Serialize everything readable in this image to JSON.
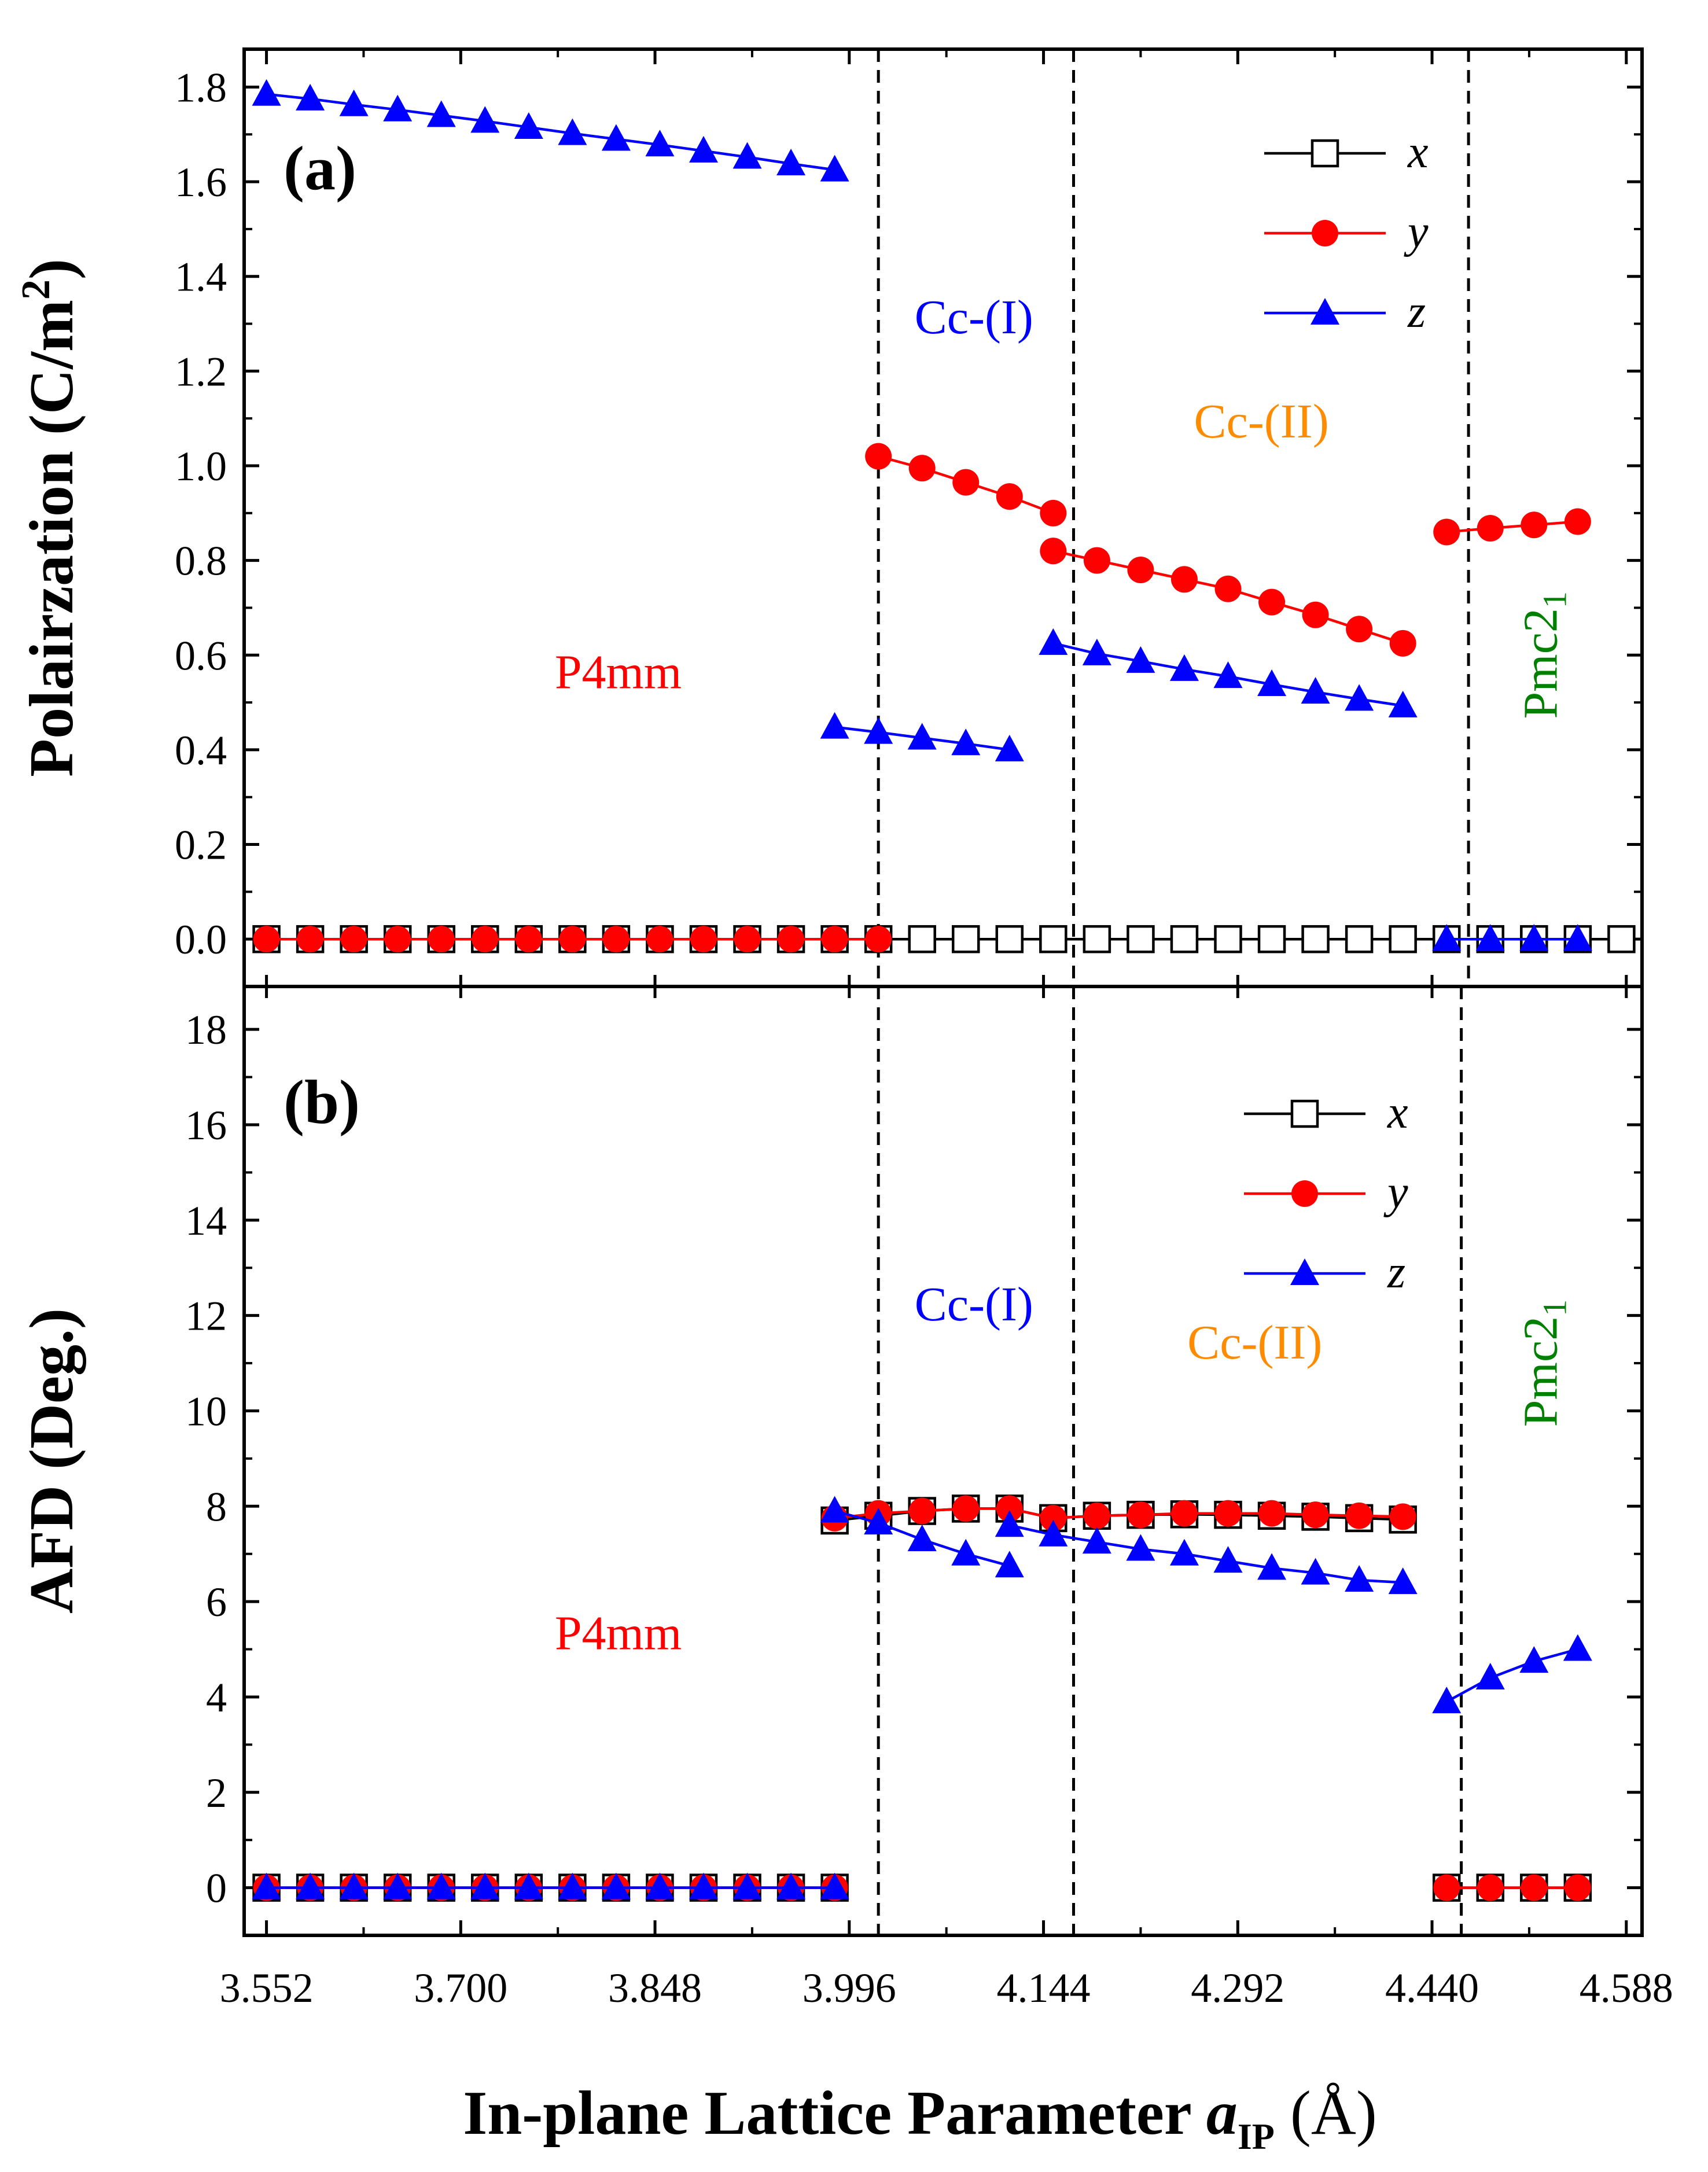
{
  "chart_data": {
    "type": "line",
    "x": [
      3.552,
      3.5853,
      3.6186,
      3.6519,
      3.6852,
      3.7185,
      3.7518,
      3.7851,
      3.8184,
      3.8517,
      3.885,
      3.9183,
      3.9516,
      3.9849,
      4.0182,
      4.0515,
      4.0848,
      4.1181,
      4.1514,
      4.1847,
      4.218,
      4.2513,
      4.2846,
      4.3179,
      4.3512,
      4.3845,
      4.4178,
      4.4511,
      4.4844,
      4.5177,
      4.551,
      4.5843
    ],
    "xticks": [
      "3.552",
      "3.700",
      "3.848",
      "3.996",
      "4.144",
      "4.292",
      "4.440",
      "4.588"
    ],
    "xlabel": "In-plane Lattice  Parameter ",
    "xlabel_var": "a",
    "xlabel_sub": "IP",
    "xlabel_unit": " (Å)",
    "xlim": [
      3.535,
      4.6
    ],
    "series_colors": {
      "x": "#000000",
      "y": "#ff0000",
      "z": "#0000ff"
    },
    "panels": [
      {
        "label": "(a)",
        "ylabel": "Polairzation (C/m",
        "ylabel_sup": "2",
        "ylabel_end": ")",
        "ylim": [
          -0.1,
          1.88
        ],
        "yticks": [
          "0.0",
          "0.2",
          "0.4",
          "0.6",
          "0.8",
          "1.0",
          "1.2",
          "1.4",
          "1.6",
          "1.8"
        ],
        "phase_boundaries": [
          4.0182,
          4.1669,
          4.4678
        ],
        "phases": [
          {
            "text": "P4mm",
            "color": "#ff0000",
            "x": 3.82,
            "y": 0.53,
            "rotate": false
          },
          {
            "text": "Cc-(I)",
            "color": "#0000ff",
            "x": 4.091,
            "y": 1.28,
            "rotate": false
          },
          {
            "text": "Cc-(II)",
            "color": "#ff8c00",
            "x": 4.31,
            "y": 1.06,
            "rotate": false
          },
          {
            "text": "Pmc2",
            "sub": "1",
            "color": "#008000",
            "x": 4.535,
            "y": 0.6,
            "rotate": true
          }
        ],
        "legend": [
          "x",
          "y",
          "z"
        ],
        "series": [
          {
            "name": "x",
            "segments": [
              {
                "x": [
                  4.0182,
                  4.0515,
                  4.0848,
                  4.1181,
                  4.1514,
                  4.1847,
                  4.218,
                  4.2513,
                  4.2846,
                  4.3179,
                  4.3512,
                  4.3845,
                  4.4178,
                  4.4511,
                  4.4844,
                  4.5177,
                  4.551,
                  4.5843
                ],
                "y": [
                  0,
                  0,
                  0,
                  0,
                  0,
                  0,
                  0,
                  0,
                  0,
                  0,
                  0,
                  0,
                  0,
                  0,
                  0,
                  0,
                  0,
                  0
                ]
              },
              {
                "x": [
                  3.552,
                  3.5853,
                  3.6186,
                  3.6519,
                  3.6852,
                  3.7185,
                  3.7518,
                  3.7851,
                  3.8184,
                  3.8517,
                  3.885,
                  3.9183,
                  3.9516,
                  3.9849
                ],
                "y": [
                  0,
                  0,
                  0,
                  0,
                  0,
                  0,
                  0,
                  0,
                  0,
                  0,
                  0,
                  0,
                  0,
                  0
                ]
              }
            ]
          },
          {
            "name": "y",
            "segments": [
              {
                "x": [
                  3.552,
                  3.5853,
                  3.6186,
                  3.6519,
                  3.6852,
                  3.7185,
                  3.7518,
                  3.7851,
                  3.8184,
                  3.8517,
                  3.885,
                  3.9183,
                  3.9516,
                  3.9849,
                  4.0182
                ],
                "y": [
                  0,
                  0,
                  0,
                  0,
                  0,
                  0,
                  0,
                  0,
                  0,
                  0,
                  0,
                  0,
                  0,
                  0,
                  0
                ]
              },
              {
                "x": [
                  4.0182,
                  4.0515,
                  4.0848,
                  4.1181,
                  4.1514
                ],
                "y": [
                  1.02,
                  0.995,
                  0.965,
                  0.935,
                  0.9
                ]
              },
              {
                "x": [
                  4.1514,
                  4.1847,
                  4.218,
                  4.2513,
                  4.2846,
                  4.3179,
                  4.3512,
                  4.3845,
                  4.4178
                ],
                "y": [
                  0.82,
                  0.8,
                  0.78,
                  0.76,
                  0.74,
                  0.712,
                  0.685,
                  0.655,
                  0.625
                ]
              },
              {
                "x": [
                  4.4511,
                  4.4844,
                  4.5177,
                  4.551
                ],
                "y": [
                  0.86,
                  0.868,
                  0.875,
                  0.882
                ]
              }
            ]
          },
          {
            "name": "z",
            "segments": [
              {
                "x": [
                  3.552,
                  3.5853,
                  3.6186,
                  3.6519,
                  3.6852,
                  3.7185,
                  3.7518,
                  3.7851,
                  3.8184,
                  3.8517,
                  3.885,
                  3.9183,
                  3.9516,
                  3.9849
                ],
                "y": [
                  1.785,
                  1.775,
                  1.763,
                  1.752,
                  1.74,
                  1.728,
                  1.715,
                  1.702,
                  1.69,
                  1.678,
                  1.665,
                  1.652,
                  1.638,
                  1.625
                ]
              },
              {
                "x": [
                  3.9849,
                  4.0182,
                  4.0515,
                  4.0848,
                  4.1181
                ],
                "y": [
                  0.448,
                  0.437,
                  0.425,
                  0.413,
                  0.4
                ]
              },
              {
                "x": [
                  4.1514,
                  4.1847,
                  4.218,
                  4.2513,
                  4.2846,
                  4.3179,
                  4.3512,
                  4.3845,
                  4.4178
                ],
                "y": [
                  0.625,
                  0.603,
                  0.587,
                  0.57,
                  0.555,
                  0.538,
                  0.522,
                  0.507,
                  0.493
                ]
              },
              {
                "x": [
                  4.4511,
                  4.4844,
                  4.5177,
                  4.551
                ],
                "y": [
                  0,
                  0,
                  0,
                  0
                ]
              }
            ]
          }
        ]
      },
      {
        "label": "(b)",
        "ylabel": "AFD (Deg.)",
        "ylim": [
          -1,
          18.9
        ],
        "yticks": [
          "0",
          "2",
          "4",
          "6",
          "8",
          "10",
          "12",
          "14",
          "16",
          "18"
        ],
        "phase_boundaries": [
          4.0182,
          4.1669,
          4.4623
        ],
        "phases": [
          {
            "text": "P4mm",
            "color": "#ff0000",
            "x": 3.82,
            "y": 5.0,
            "rotate": false
          },
          {
            "text": "Cc-(I)",
            "color": "#0000ff",
            "x": 4.091,
            "y": 11.9,
            "rotate": false
          },
          {
            "text": "Cc-(II)",
            "color": "#ff8c00",
            "x": 4.305,
            "y": 11.1,
            "rotate": false
          },
          {
            "text": "Pmc2",
            "sub": "1",
            "color": "#008000",
            "x": 4.535,
            "y": 11.0,
            "rotate": true
          }
        ],
        "legend": [
          "x",
          "y",
          "z"
        ],
        "series": [
          {
            "name": "x",
            "segments": [
              {
                "x": [
                  3.552,
                  3.5853,
                  3.6186,
                  3.6519,
                  3.6852,
                  3.7185,
                  3.7518,
                  3.7851,
                  3.8184,
                  3.8517,
                  3.885,
                  3.9183,
                  3.9516,
                  3.9849
                ],
                "y": [
                  0,
                  0,
                  0,
                  0,
                  0,
                  0,
                  0,
                  0,
                  0,
                  0,
                  0,
                  0,
                  0,
                  0
                ]
              },
              {
                "x": [
                  3.9849,
                  4.0182,
                  4.0515,
                  4.0848,
                  4.1181,
                  4.1514,
                  4.1847,
                  4.218,
                  4.2513,
                  4.2846,
                  4.3179,
                  4.3512,
                  4.3845,
                  4.4178
                ],
                "y": [
                  7.7,
                  7.8,
                  7.9,
                  7.95,
                  7.95,
                  7.75,
                  7.8,
                  7.82,
                  7.83,
                  7.82,
                  7.8,
                  7.78,
                  7.75,
                  7.72
                ]
              },
              {
                "x": [
                  4.4511,
                  4.4844,
                  4.5177,
                  4.551
                ],
                "y": [
                  0,
                  0,
                  0,
                  0
                ]
              }
            ]
          },
          {
            "name": "y",
            "segments": [
              {
                "x": [
                  3.552,
                  3.5853,
                  3.6186,
                  3.6519,
                  3.6852,
                  3.7185,
                  3.7518,
                  3.7851,
                  3.8184,
                  3.8517,
                  3.885,
                  3.9183,
                  3.9516,
                  3.9849
                ],
                "y": [
                  0,
                  0,
                  0,
                  0,
                  0,
                  0,
                  0,
                  0,
                  0,
                  0,
                  0,
                  0,
                  0,
                  0
                ]
              },
              {
                "x": [
                  3.9849,
                  4.0182,
                  4.0515,
                  4.0848,
                  4.1181,
                  4.1514,
                  4.1847,
                  4.218,
                  4.2513,
                  4.2846,
                  4.3179,
                  4.3512,
                  4.3845,
                  4.4178
                ],
                "y": [
                  7.75,
                  7.85,
                  7.9,
                  7.95,
                  7.95,
                  7.75,
                  7.8,
                  7.82,
                  7.85,
                  7.85,
                  7.85,
                  7.82,
                  7.8,
                  7.78
                ]
              },
              {
                "x": [
                  4.4511,
                  4.4844,
                  4.5177,
                  4.551
                ],
                "y": [
                  0,
                  0,
                  0,
                  0
                ]
              }
            ]
          },
          {
            "name": "z",
            "segments": [
              {
                "x": [
                  3.552,
                  3.5853,
                  3.6186,
                  3.6519,
                  3.6852,
                  3.7185,
                  3.7518,
                  3.7851,
                  3.8184,
                  3.8517,
                  3.885,
                  3.9183,
                  3.9516,
                  3.9849
                ],
                "y": [
                  0,
                  0,
                  0,
                  0,
                  0,
                  0,
                  0,
                  0,
                  0,
                  0,
                  0,
                  0,
                  0,
                  0
                ]
              },
              {
                "x": [
                  3.9849,
                  4.0182,
                  4.0515,
                  4.0848,
                  4.1181
                ],
                "y": [
                  7.9,
                  7.65,
                  7.3,
                  7.0,
                  6.75
                ]
              },
              {
                "x": [
                  4.1181,
                  4.1514,
                  4.1847,
                  4.218,
                  4.2513,
                  4.2846,
                  4.3179,
                  4.3512,
                  4.3845,
                  4.4178
                ],
                "y": [
                  7.6,
                  7.4,
                  7.25,
                  7.1,
                  7.0,
                  6.85,
                  6.7,
                  6.6,
                  6.45,
                  6.4
                ]
              },
              {
                "x": [
                  4.4511,
                  4.4844,
                  4.5177,
                  4.551
                ],
                "y": [
                  3.9,
                  4.4,
                  4.75,
                  5.0
                ]
              }
            ]
          }
        ]
      }
    ]
  }
}
